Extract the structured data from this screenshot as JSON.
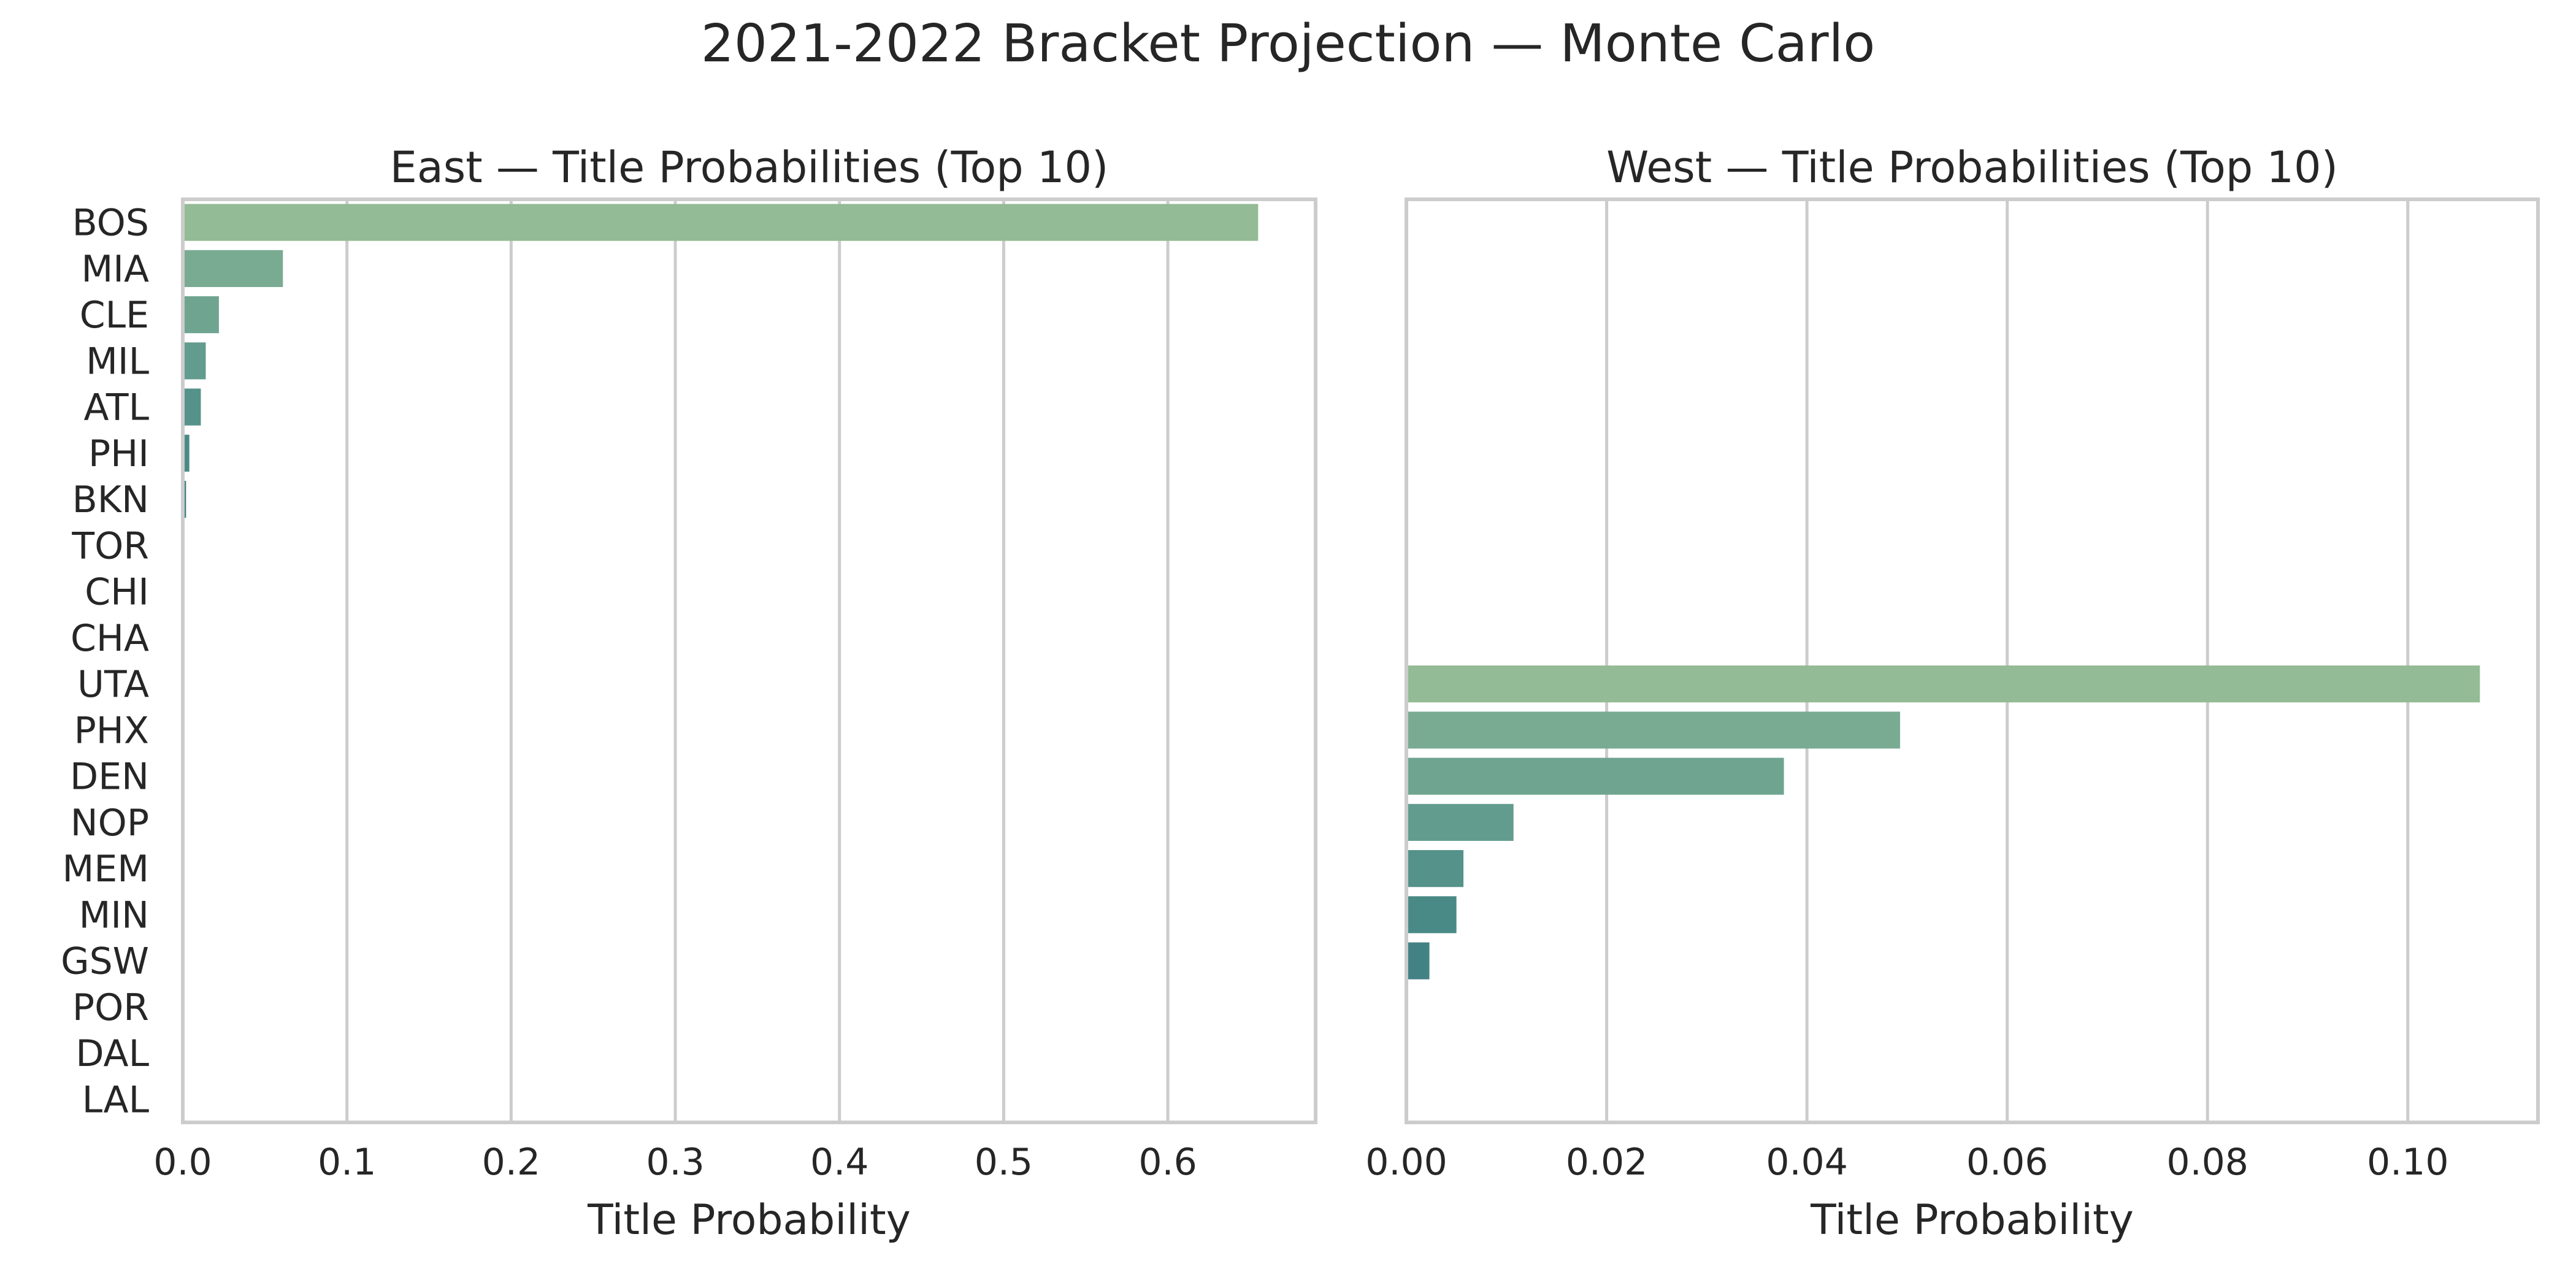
{
  "figure": {
    "title": "2021-2022 Bracket Projection — Monte Carlo"
  },
  "chart_data": [
    {
      "type": "bar",
      "orientation": "horizontal",
      "title": "East — Title Probabilities (Top 10)",
      "xlabel": "Title Probability",
      "ylabel": "",
      "categories": [
        "BOS",
        "MIA",
        "CLE",
        "MIL",
        "ATL",
        "PHI",
        "BKN",
        "TOR",
        "CHI",
        "CHA",
        "UTA",
        "PHX",
        "DEN",
        "NOP",
        "MEM",
        "MIN",
        "GSW",
        "POR",
        "DAL",
        "LAL"
      ],
      "values": [
        0.655,
        0.061,
        0.022,
        0.014,
        0.011,
        0.004,
        0.002,
        0.0,
        0.0,
        0.0,
        null,
        null,
        null,
        null,
        null,
        null,
        null,
        null,
        null,
        null
      ],
      "xlim": [
        0,
        0.69
      ],
      "xticks": [
        0.0,
        0.1,
        0.2,
        0.3,
        0.4,
        0.5,
        0.6
      ],
      "xtick_labels": [
        "0.0",
        "0.1",
        "0.2",
        "0.3",
        "0.4",
        "0.5",
        "0.6"
      ],
      "grid": "vertical",
      "palette": "crest",
      "bar_colors": [
        "#93bb95",
        "#79ab93",
        "#6fa491",
        "#629c8f",
        "#559289",
        "#4a8a86",
        "#438284",
        "#3e7a83",
        "#377282",
        "#306a81"
      ]
    },
    {
      "type": "bar",
      "orientation": "horizontal",
      "title": "West — Title Probabilities (Top 10)",
      "xlabel": "Title Probability",
      "ylabel": "",
      "categories": [
        "BOS",
        "MIA",
        "CLE",
        "MIL",
        "ATL",
        "PHI",
        "BKN",
        "TOR",
        "CHI",
        "CHA",
        "UTA",
        "PHX",
        "DEN",
        "NOP",
        "MEM",
        "MIN",
        "GSW",
        "POR",
        "DAL",
        "LAL"
      ],
      "values": [
        null,
        null,
        null,
        null,
        null,
        null,
        null,
        null,
        null,
        null,
        0.1072,
        0.0493,
        0.0377,
        0.0107,
        0.0057,
        0.005,
        0.0023,
        0.0,
        0.0,
        0.0
      ],
      "xlim": [
        0,
        0.113
      ],
      "xticks": [
        0.0,
        0.02,
        0.04,
        0.06,
        0.08,
        0.1
      ],
      "xtick_labels": [
        "0.00",
        "0.02",
        "0.04",
        "0.06",
        "0.08",
        "0.10"
      ],
      "grid": "vertical",
      "palette": "crest",
      "bar_colors": [
        "#93bb95",
        "#79ab93",
        "#6fa491",
        "#629c8f",
        "#559289",
        "#4a8a86",
        "#438284",
        "#3e7a83",
        "#377282",
        "#306a81"
      ]
    }
  ]
}
